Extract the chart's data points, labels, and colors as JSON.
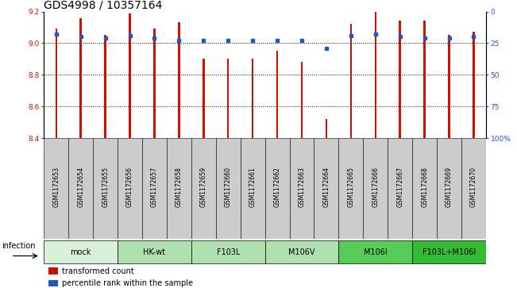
{
  "title": "GDS4998 / 10357164",
  "samples": [
    "GSM1172653",
    "GSM1172654",
    "GSM1172655",
    "GSM1172656",
    "GSM1172657",
    "GSM1172658",
    "GSM1172659",
    "GSM1172660",
    "GSM1172661",
    "GSM1172662",
    "GSM1172663",
    "GSM1172664",
    "GSM1172665",
    "GSM1172666",
    "GSM1172667",
    "GSM1172668",
    "GSM1172669",
    "GSM1172670"
  ],
  "transformed_count": [
    9.09,
    9.16,
    9.05,
    9.19,
    9.09,
    9.13,
    8.9,
    8.9,
    8.9,
    8.95,
    8.88,
    8.52,
    9.12,
    9.2,
    9.14,
    9.14,
    9.05,
    9.07
  ],
  "percentile_rank": [
    82,
    80,
    79,
    81,
    79,
    77,
    77,
    77,
    77,
    77,
    77,
    71,
    81,
    82,
    80,
    79,
    79,
    80
  ],
  "ylim_left": [
    8.4,
    9.2
  ],
  "ylim_right": [
    0,
    100
  ],
  "yticks_left": [
    8.4,
    8.6,
    8.8,
    9.0,
    9.2
  ],
  "yticks_right": [
    0,
    25,
    50,
    75,
    100
  ],
  "groups": [
    {
      "label": "mock",
      "indices": [
        0,
        1,
        2
      ],
      "color": "#d8f0d8"
    },
    {
      "label": "HK-wt",
      "indices": [
        3,
        4,
        5
      ],
      "color": "#b0e0b0"
    },
    {
      "label": "F103L",
      "indices": [
        6,
        7,
        8
      ],
      "color": "#b0e0b0"
    },
    {
      "label": "M106V",
      "indices": [
        9,
        10,
        11
      ],
      "color": "#b0e0b0"
    },
    {
      "label": "M106I",
      "indices": [
        12,
        13,
        14
      ],
      "color": "#55cc55"
    },
    {
      "label": "F103L+M106I",
      "indices": [
        15,
        16,
        17
      ],
      "color": "#33bb33"
    }
  ],
  "bar_color": "#cc1100",
  "dot_color": "#2255cc",
  "bar_width": 0.08,
  "infection_label": "infection",
  "legend": [
    {
      "label": "transformed count",
      "color": "#cc1100",
      "marker": "s"
    },
    {
      "label": "percentile rank within the sample",
      "color": "#2255cc",
      "marker": "s"
    }
  ],
  "title_fontsize": 10,
  "tick_fontsize": 6.5,
  "label_fontsize": 7.5,
  "sample_box_color": "#cccccc",
  "right_axis_label": [
    "100%",
    "75",
    "50",
    "25",
    "0"
  ]
}
